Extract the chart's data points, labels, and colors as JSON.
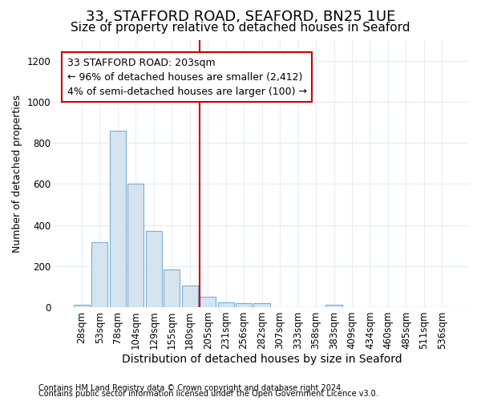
{
  "title": "33, STAFFORD ROAD, SEAFORD, BN25 1UE",
  "subtitle": "Size of property relative to detached houses in Seaford",
  "xlabel": "Distribution of detached houses by size in Seaford",
  "ylabel": "Number of detached properties",
  "footnote1": "Contains HM Land Registry data © Crown copyright and database right 2024.",
  "footnote2": "Contains public sector information licensed under the Open Government Licence v3.0.",
  "annotation_title": "33 STAFFORD ROAD: 203sqm",
  "annotation_line1": "← 96% of detached houses are smaller (2,412)",
  "annotation_line2": "4% of semi-detached houses are larger (100) →",
  "bar_labels": [
    "28sqm",
    "53sqm",
    "78sqm",
    "104sqm",
    "129sqm",
    "155sqm",
    "180sqm",
    "205sqm",
    "231sqm",
    "256sqm",
    "282sqm",
    "307sqm",
    "333sqm",
    "358sqm",
    "383sqm",
    "409sqm",
    "434sqm",
    "460sqm",
    "485sqm",
    "511sqm",
    "536sqm"
  ],
  "bar_values": [
    13,
    318,
    860,
    600,
    370,
    185,
    105,
    50,
    25,
    18,
    20,
    0,
    0,
    0,
    13,
    0,
    0,
    0,
    0,
    0,
    0
  ],
  "bar_color": "#d6e4f0",
  "bar_edgecolor": "#7aaed4",
  "vline_color": "#cc0000",
  "annotation_box_color": "#cc0000",
  "background_color": "#ffffff",
  "plot_bg_color": "#ffffff",
  "ylim": [
    0,
    1300
  ],
  "yticks": [
    0,
    200,
    400,
    600,
    800,
    1000,
    1200
  ],
  "grid_color": "#e8eef5",
  "title_fontsize": 13,
  "subtitle_fontsize": 11,
  "xlabel_fontsize": 10,
  "ylabel_fontsize": 9,
  "tick_fontsize": 8.5,
  "annotation_fontsize": 9,
  "footnote_fontsize": 7
}
